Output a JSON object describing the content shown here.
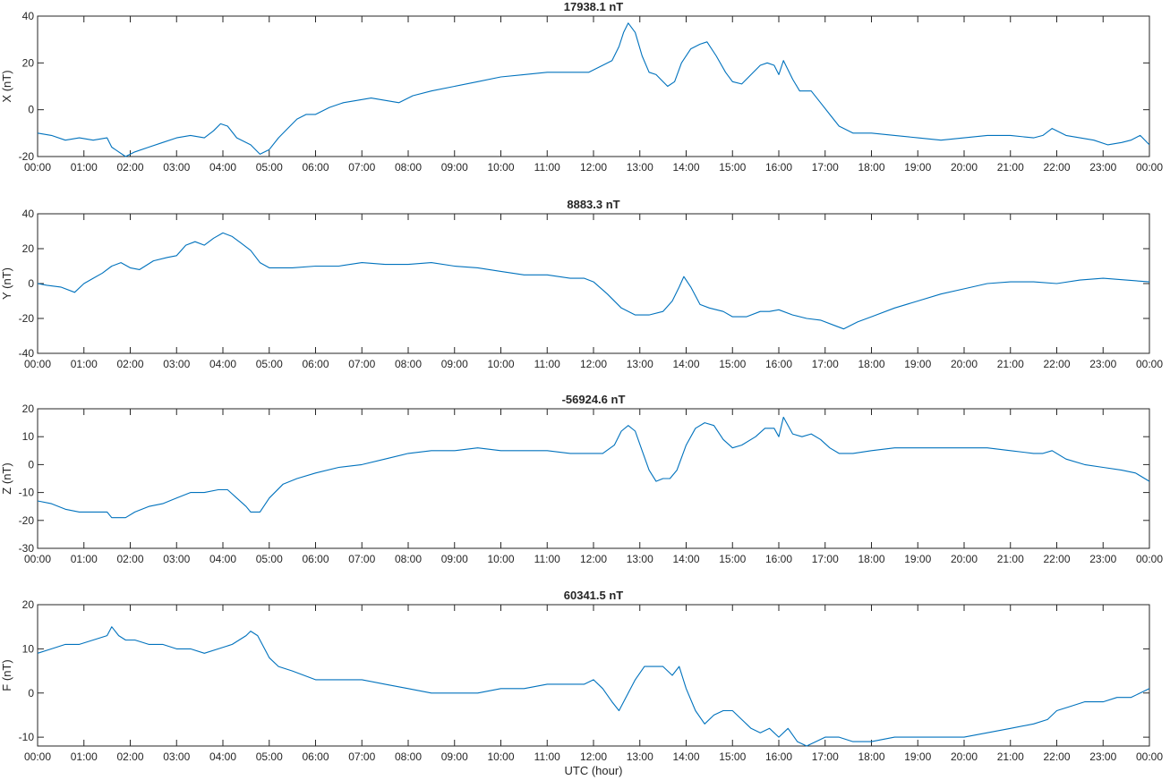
{
  "figure": {
    "line_color": "#0072BD",
    "axis_color": "#262626",
    "xlabel": "UTC (hour)"
  },
  "chart_data": [
    {
      "type": "line",
      "title": "17938.1 nT",
      "ylabel": "X (nT)",
      "xlim": [
        0,
        24
      ],
      "ylim": [
        -20,
        40
      ],
      "yticks": [
        -20,
        0,
        20,
        40
      ],
      "xtick_labels": [
        "00:00",
        "01:00",
        "02:00",
        "03:00",
        "04:00",
        "05:00",
        "06:00",
        "07:00",
        "08:00",
        "09:00",
        "10:00",
        "11:00",
        "12:00",
        "13:00",
        "14:00",
        "15:00",
        "16:00",
        "17:00",
        "18:00",
        "19:00",
        "20:00",
        "21:00",
        "22:00",
        "23:00",
        "00:00"
      ],
      "series": [
        {
          "x": [
            0,
            0.3,
            0.6,
            0.9,
            1.2,
            1.5,
            1.6,
            1.75,
            1.9,
            2.1,
            2.4,
            2.7,
            3.0,
            3.3,
            3.6,
            3.8,
            3.95,
            4.1,
            4.3,
            4.6,
            4.8,
            5.0,
            5.2,
            5.4,
            5.6,
            5.8,
            6.0,
            6.3,
            6.6,
            6.9,
            7.2,
            7.5,
            7.8,
            8.1,
            8.5,
            9.0,
            9.5,
            10.0,
            10.5,
            11.0,
            11.5,
            11.9,
            12.2,
            12.4,
            12.55,
            12.65,
            12.75,
            12.9,
            13.05,
            13.2,
            13.35,
            13.45,
            13.6,
            13.75,
            13.9,
            14.1,
            14.3,
            14.45,
            14.65,
            14.85,
            15.0,
            15.2,
            15.4,
            15.6,
            15.75,
            15.9,
            16.0,
            16.1,
            16.3,
            16.45,
            16.7,
            16.9,
            17.1,
            17.3,
            17.6,
            18.0,
            18.5,
            19.0,
            19.5,
            20.0,
            20.5,
            21.0,
            21.5,
            21.7,
            21.9,
            22.2,
            22.5,
            22.8,
            23.1,
            23.4,
            23.6,
            23.8,
            24.0
          ],
          "y": [
            -10,
            -11,
            -13,
            -12,
            -13,
            -12,
            -16,
            -18,
            -21,
            -18,
            -16,
            -14,
            -12,
            -11,
            -12,
            -9,
            -6,
            -7,
            -12,
            -15,
            -19,
            -17,
            -12,
            -8,
            -4,
            -2,
            -2,
            1,
            3,
            4,
            5,
            4,
            3,
            6,
            8,
            10,
            12,
            14,
            15,
            16,
            16,
            16,
            19,
            21,
            27,
            33,
            37,
            33,
            23,
            16,
            15,
            13,
            10,
            12,
            20,
            26,
            28,
            29,
            23,
            16,
            12,
            11,
            15,
            19,
            20,
            19,
            15,
            21,
            13,
            8,
            8,
            3,
            -2,
            -7,
            -10,
            -10,
            -11,
            -12,
            -13,
            -12,
            -11,
            -11,
            -12,
            -11,
            -8,
            -11,
            -12,
            -13,
            -15,
            -14,
            -13,
            -11,
            -15
          ]
        }
      ]
    },
    {
      "type": "line",
      "title": "8883.3 nT",
      "ylabel": "Y (nT)",
      "xlim": [
        0,
        24
      ],
      "ylim": [
        -40,
        40
      ],
      "yticks": [
        -40,
        -20,
        0,
        20,
        40
      ],
      "xtick_labels": [
        "00:00",
        "01:00",
        "02:00",
        "03:00",
        "04:00",
        "05:00",
        "06:00",
        "07:00",
        "08:00",
        "09:00",
        "10:00",
        "11:00",
        "12:00",
        "13:00",
        "14:00",
        "15:00",
        "16:00",
        "17:00",
        "18:00",
        "19:00",
        "20:00",
        "21:00",
        "22:00",
        "23:00",
        "00:00"
      ],
      "series": [
        {
          "x": [
            0,
            0.2,
            0.5,
            0.8,
            1.0,
            1.2,
            1.4,
            1.6,
            1.8,
            2.0,
            2.2,
            2.5,
            2.8,
            3.0,
            3.2,
            3.4,
            3.6,
            3.8,
            4.0,
            4.2,
            4.4,
            4.6,
            4.8,
            5.0,
            5.5,
            6.0,
            6.5,
            7.0,
            7.5,
            8.0,
            8.5,
            9.0,
            9.5,
            10.0,
            10.5,
            11.0,
            11.5,
            11.8,
            12.0,
            12.3,
            12.6,
            12.9,
            13.2,
            13.5,
            13.7,
            13.85,
            13.95,
            14.1,
            14.3,
            14.5,
            14.8,
            15.0,
            15.3,
            15.6,
            15.8,
            16.0,
            16.3,
            16.6,
            16.9,
            17.2,
            17.4,
            17.7,
            18.0,
            18.5,
            19.0,
            19.5,
            20.0,
            20.5,
            21.0,
            21.5,
            22.0,
            22.5,
            23.0,
            23.5,
            24.0
          ],
          "y": [
            0,
            -1,
            -2,
            -5,
            0,
            3,
            6,
            10,
            12,
            9,
            8,
            13,
            15,
            16,
            22,
            24,
            22,
            26,
            29,
            27,
            23,
            19,
            12,
            9,
            9,
            10,
            10,
            12,
            11,
            11,
            12,
            10,
            9,
            7,
            5,
            5,
            3,
            3,
            1,
            -6,
            -14,
            -18,
            -18,
            -16,
            -10,
            -2,
            4,
            -2,
            -12,
            -14,
            -16,
            -19,
            -19,
            -16,
            -16,
            -15,
            -18,
            -20,
            -21,
            -24,
            -26,
            -22,
            -19,
            -14,
            -10,
            -6,
            -3,
            0,
            1,
            1,
            0,
            2,
            3,
            2,
            1
          ]
        }
      ]
    },
    {
      "type": "line",
      "title": "-56924.6 nT",
      "ylabel": "Z (nT)",
      "xlim": [
        0,
        24
      ],
      "ylim": [
        -30,
        20
      ],
      "yticks": [
        -30,
        -20,
        -10,
        0,
        10,
        20
      ],
      "xtick_labels": [
        "00:00",
        "01:00",
        "02:00",
        "03:00",
        "04:00",
        "05:00",
        "06:00",
        "07:00",
        "08:00",
        "09:00",
        "10:00",
        "11:00",
        "12:00",
        "13:00",
        "14:00",
        "15:00",
        "16:00",
        "17:00",
        "18:00",
        "19:00",
        "20:00",
        "21:00",
        "22:00",
        "23:00",
        "00:00"
      ],
      "series": [
        {
          "x": [
            0,
            0.3,
            0.6,
            0.9,
            1.2,
            1.5,
            1.6,
            1.75,
            1.9,
            2.1,
            2.4,
            2.7,
            3.0,
            3.3,
            3.6,
            3.9,
            4.1,
            4.3,
            4.5,
            4.6,
            4.8,
            5.0,
            5.3,
            5.6,
            6.0,
            6.5,
            7.0,
            7.5,
            8.0,
            8.5,
            9.0,
            9.5,
            10.0,
            10.5,
            11.0,
            11.5,
            11.9,
            12.2,
            12.45,
            12.6,
            12.75,
            12.9,
            13.05,
            13.2,
            13.35,
            13.5,
            13.65,
            13.8,
            14.0,
            14.2,
            14.4,
            14.6,
            14.8,
            15.0,
            15.2,
            15.5,
            15.7,
            15.9,
            16.0,
            16.1,
            16.3,
            16.5,
            16.7,
            16.9,
            17.1,
            17.3,
            17.6,
            18.0,
            18.5,
            19.0,
            19.5,
            20.0,
            20.5,
            21.0,
            21.5,
            21.7,
            21.9,
            22.2,
            22.6,
            23.0,
            23.4,
            23.7,
            24.0
          ],
          "y": [
            -13,
            -14,
            -16,
            -17,
            -17,
            -17,
            -19,
            -19,
            -19,
            -17,
            -15,
            -14,
            -12,
            -10,
            -10,
            -9,
            -9,
            -12,
            -15,
            -17,
            -17,
            -12,
            -7,
            -5,
            -3,
            -1,
            0,
            2,
            4,
            5,
            5,
            6,
            5,
            5,
            5,
            4,
            4,
            4,
            7,
            12,
            14,
            12,
            5,
            -2,
            -6,
            -5,
            -5,
            -2,
            7,
            13,
            15,
            14,
            9,
            6,
            7,
            10,
            13,
            13,
            10,
            17,
            11,
            10,
            11,
            9,
            6,
            4,
            4,
            5,
            6,
            6,
            6,
            6,
            6,
            5,
            4,
            4,
            5,
            2,
            0,
            -1,
            -2,
            -3,
            -6
          ]
        }
      ]
    },
    {
      "type": "line",
      "title": "60341.5 nT",
      "ylabel": "F (nT)",
      "xlim": [
        0,
        24
      ],
      "ylim": [
        -12,
        20
      ],
      "yticks": [
        -10,
        0,
        10,
        20
      ],
      "xtick_labels": [
        "00:00",
        "01:00",
        "02:00",
        "03:00",
        "04:00",
        "05:00",
        "06:00",
        "07:00",
        "08:00",
        "09:00",
        "10:00",
        "11:00",
        "12:00",
        "13:00",
        "14:00",
        "15:00",
        "16:00",
        "17:00",
        "18:00",
        "19:00",
        "20:00",
        "21:00",
        "22:00",
        "23:00",
        "00:00"
      ],
      "series": [
        {
          "x": [
            0,
            0.3,
            0.6,
            0.9,
            1.2,
            1.5,
            1.6,
            1.75,
            1.9,
            2.1,
            2.4,
            2.7,
            3.0,
            3.3,
            3.6,
            3.9,
            4.2,
            4.5,
            4.6,
            4.75,
            4.9,
            5.0,
            5.2,
            5.5,
            6.0,
            6.5,
            7.0,
            7.5,
            8.0,
            8.5,
            9.0,
            9.5,
            10.0,
            10.5,
            11.0,
            11.5,
            11.8,
            12.0,
            12.2,
            12.4,
            12.55,
            12.7,
            12.9,
            13.1,
            13.3,
            13.5,
            13.7,
            13.85,
            14.0,
            14.2,
            14.4,
            14.6,
            14.8,
            15.0,
            15.2,
            15.4,
            15.6,
            15.8,
            16.0,
            16.2,
            16.4,
            16.6,
            16.8,
            17.0,
            17.3,
            17.6,
            18.0,
            18.5,
            19.0,
            19.5,
            20.0,
            20.5,
            21.0,
            21.5,
            21.8,
            22.0,
            22.3,
            22.6,
            23.0,
            23.3,
            23.6,
            23.8,
            24.0
          ],
          "y": [
            9,
            10,
            11,
            11,
            12,
            13,
            15,
            13,
            12,
            12,
            11,
            11,
            10,
            10,
            9,
            10,
            11,
            13,
            14,
            13,
            10,
            8,
            6,
            5,
            3,
            3,
            3,
            2,
            1,
            0,
            0,
            0,
            1,
            1,
            2,
            2,
            2,
            3,
            1,
            -2,
            -4,
            -1,
            3,
            6,
            6,
            6,
            4,
            6,
            1,
            -4,
            -7,
            -5,
            -4,
            -4,
            -6,
            -8,
            -9,
            -8,
            -10,
            -8,
            -11,
            -12,
            -11,
            -10,
            -10,
            -11,
            -11,
            -10,
            -10,
            -10,
            -10,
            -9,
            -8,
            -7,
            -6,
            -4,
            -3,
            -2,
            -2,
            -1,
            -1,
            0,
            1
          ]
        }
      ]
    }
  ]
}
